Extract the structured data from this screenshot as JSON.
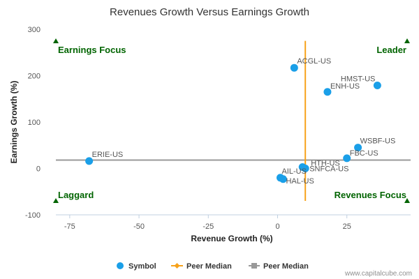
{
  "chart_data": {
    "type": "scatter",
    "title": "Revenues Growth Versus Earnings Growth",
    "xlabel": "Revenue Growth (%)",
    "ylabel": "Earnings Growth (%)",
    "xlim": [
      -80,
      48
    ],
    "ylim": [
      -100,
      300
    ],
    "xticks": [
      -75,
      -50,
      -25,
      0,
      25
    ],
    "yticks": [
      -100,
      0,
      100,
      200,
      300
    ],
    "points": [
      {
        "label": "ERIE-US",
        "x": -68,
        "y": 16
      },
      {
        "label": "ACGL-US",
        "x": 6,
        "y": 217
      },
      {
        "label": "HMST-US",
        "x": 36,
        "y": 179
      },
      {
        "label": "ENH-US",
        "x": 18,
        "y": 165
      },
      {
        "label": "WSBF-US",
        "x": 29,
        "y": 45
      },
      {
        "label": "FBC-US",
        "x": 25,
        "y": 22
      },
      {
        "label": "HTH-US",
        "x": 9,
        "y": 3
      },
      {
        "label": "SNFCA-US",
        "x": 10,
        "y": 0
      },
      {
        "label": "AIL-US",
        "x": 1,
        "y": -20
      },
      {
        "label": "HAL-US",
        "x": 2,
        "y": -23
      }
    ],
    "peer_median": {
      "x": 10,
      "y": 18
    },
    "quadrants": {
      "top_left": "Earnings Focus",
      "top_right": "Leader",
      "bottom_left": "Laggard",
      "bottom_right": "Revenues Focus"
    },
    "legend": [
      "Symbol",
      "Peer Median",
      "Peer Median"
    ],
    "legend_position": "bottom",
    "colors": {
      "symbol": "#1a9fe8",
      "peer_median_x": "#f7a21b",
      "peer_median_y": "#999999",
      "quadrant_text": "#006400"
    }
  },
  "credit": "www.capitalcube.com"
}
